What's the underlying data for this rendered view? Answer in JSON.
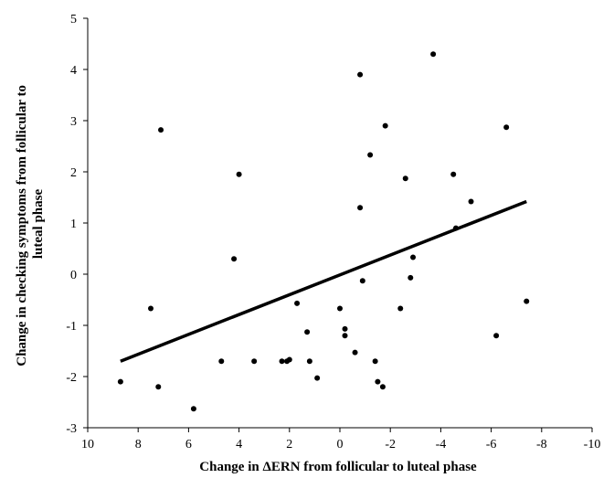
{
  "chart_data": {
    "type": "scatter",
    "title": "",
    "xlabel": "Change in ΔERN from follicular to luteal phase",
    "ylabel": [
      "Change in checking symptoms  from follicular to",
      "luteal phase"
    ],
    "xlim": [
      10,
      -10
    ],
    "ylim": [
      -3,
      5
    ],
    "x_reversed": true,
    "x_ticks": [
      "10",
      "8",
      "6",
      "4",
      "2",
      "0",
      "-2",
      "-4",
      "-6",
      "-8",
      "-10"
    ],
    "y_ticks": [
      "-3",
      "-2",
      "-1",
      "0",
      "1",
      "2",
      "3",
      "4",
      "5"
    ],
    "grid": false,
    "trendline": {
      "x": [
        8.7,
        -7.4
      ],
      "y": [
        -1.7,
        1.42
      ]
    },
    "points": [
      {
        "x": 8.7,
        "y": -2.1
      },
      {
        "x": 7.5,
        "y": -0.67
      },
      {
        "x": 7.2,
        "y": -2.2
      },
      {
        "x": 7.1,
        "y": 2.82
      },
      {
        "x": 5.8,
        "y": -2.63
      },
      {
        "x": 4.7,
        "y": -1.7
      },
      {
        "x": 4.2,
        "y": 0.3
      },
      {
        "x": 4.0,
        "y": 1.95
      },
      {
        "x": 3.4,
        "y": -1.7
      },
      {
        "x": 2.3,
        "y": -1.7
      },
      {
        "x": 2.1,
        "y": -1.7
      },
      {
        "x": 2.0,
        "y": -1.67
      },
      {
        "x": 1.7,
        "y": -0.57
      },
      {
        "x": 1.3,
        "y": -1.13
      },
      {
        "x": 1.2,
        "y": -1.7
      },
      {
        "x": 0.9,
        "y": -2.03
      },
      {
        "x": 0.0,
        "y": -0.67
      },
      {
        "x": -0.2,
        "y": -1.07
      },
      {
        "x": -0.2,
        "y": -1.2
      },
      {
        "x": -0.6,
        "y": -1.53
      },
      {
        "x": -0.8,
        "y": 1.3
      },
      {
        "x": -0.8,
        "y": 3.9
      },
      {
        "x": -0.9,
        "y": -0.13
      },
      {
        "x": -1.2,
        "y": 2.33
      },
      {
        "x": -1.4,
        "y": -1.7
      },
      {
        "x": -1.5,
        "y": -2.1
      },
      {
        "x": -1.7,
        "y": -2.2
      },
      {
        "x": -1.8,
        "y": 2.9
      },
      {
        "x": -2.4,
        "y": -0.67
      },
      {
        "x": -2.6,
        "y": 1.87
      },
      {
        "x": -2.8,
        "y": -0.07
      },
      {
        "x": -2.9,
        "y": 0.33
      },
      {
        "x": -3.7,
        "y": 4.3
      },
      {
        "x": -4.5,
        "y": 1.95
      },
      {
        "x": -4.6,
        "y": 0.9
      },
      {
        "x": -5.2,
        "y": 1.42
      },
      {
        "x": -6.2,
        "y": -1.2
      },
      {
        "x": -6.6,
        "y": 2.87
      },
      {
        "x": -7.4,
        "y": -0.53
      }
    ]
  }
}
